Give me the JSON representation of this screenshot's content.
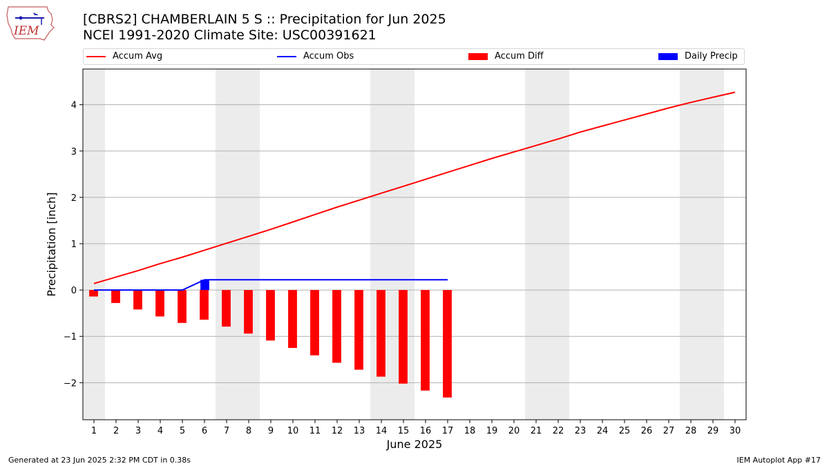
{
  "header": {
    "title_line1": "[CBRS2] CHAMBERLAIN 5 S :: Precipitation for Jun 2025",
    "title_line2": "NCEI 1991-2020 Climate Site: USC00391621",
    "logo_text": "IEM"
  },
  "footer": {
    "left": "Generated at 23 Jun 2025 2:32 PM CDT in 0.38s",
    "right": "IEM Autoplot App #17"
  },
  "colors": {
    "accum_avg": "#ff0000",
    "accum_obs": "#0000ff",
    "accum_diff": "#ff0000",
    "daily_precip": "#0000ff",
    "weekend_band": "#ececec",
    "grid": "#b0b0b0"
  },
  "chart_data": {
    "type": "bar",
    "xlabel": "June 2025",
    "ylabel": "Precipitation [inch]",
    "xlim": [
      0.5,
      30.5
    ],
    "ylim": [
      -2.8,
      4.77
    ],
    "yticks": [
      -2,
      -1,
      0,
      1,
      2,
      3,
      4
    ],
    "ytick_labels": [
      "−2",
      "−1",
      "0",
      "1",
      "2",
      "3",
      "4"
    ],
    "xticks": [
      1,
      2,
      3,
      4,
      5,
      6,
      7,
      8,
      9,
      10,
      11,
      12,
      13,
      14,
      15,
      16,
      17,
      18,
      19,
      20,
      21,
      22,
      23,
      24,
      25,
      26,
      27,
      28,
      29,
      30
    ],
    "grid": "horizontal",
    "legend_position": "top, above plot",
    "weekend_bands": [
      [
        0.5,
        1.5
      ],
      [
        6.5,
        8.5
      ],
      [
        13.5,
        15.5
      ],
      [
        20.5,
        22.5
      ],
      [
        27.5,
        29.5
      ]
    ],
    "series": [
      {
        "name": "Accum Avg",
        "kind": "line",
        "x": [
          1,
          2,
          3,
          4,
          5,
          6,
          7,
          8,
          9,
          10,
          11,
          12,
          13,
          14,
          15,
          16,
          17,
          18,
          19,
          20,
          21,
          22,
          23,
          24,
          25,
          26,
          27,
          28,
          29,
          30
        ],
        "values": [
          0.14,
          0.28,
          0.42,
          0.57,
          0.71,
          0.86,
          1.01,
          1.16,
          1.31,
          1.47,
          1.63,
          1.79,
          1.94,
          2.09,
          2.24,
          2.39,
          2.54,
          2.69,
          2.84,
          2.98,
          3.12,
          3.26,
          3.41,
          3.54,
          3.67,
          3.8,
          3.93,
          4.05,
          4.16,
          4.27
        ]
      },
      {
        "name": "Accum Obs",
        "kind": "line",
        "x": [
          1,
          2,
          3,
          4,
          5,
          6,
          7,
          8,
          9,
          10,
          11,
          12,
          13,
          14,
          15,
          16,
          17
        ],
        "values": [
          0,
          0,
          0,
          0,
          0,
          0.22,
          0.22,
          0.22,
          0.22,
          0.22,
          0.22,
          0.22,
          0.22,
          0.22,
          0.22,
          0.22,
          0.22
        ]
      },
      {
        "name": "Accum Diff",
        "kind": "bar",
        "x": [
          1,
          2,
          3,
          4,
          5,
          6,
          7,
          8,
          9,
          10,
          11,
          12,
          13,
          14,
          15,
          16,
          17
        ],
        "values": [
          -0.14,
          -0.28,
          -0.42,
          -0.57,
          -0.71,
          -0.64,
          -0.79,
          -0.94,
          -1.09,
          -1.25,
          -1.41,
          -1.57,
          -1.72,
          -1.87,
          -2.02,
          -2.17,
          -2.32
        ]
      },
      {
        "name": "Daily Precip",
        "kind": "bar",
        "x": [
          1,
          2,
          3,
          4,
          5,
          6,
          7,
          8,
          9,
          10,
          11,
          12,
          13,
          14,
          15,
          16,
          17
        ],
        "values": [
          0,
          0,
          0,
          0,
          0,
          0.22,
          0,
          0,
          0,
          0,
          0,
          0,
          0,
          0,
          0,
          0,
          0
        ]
      }
    ]
  }
}
